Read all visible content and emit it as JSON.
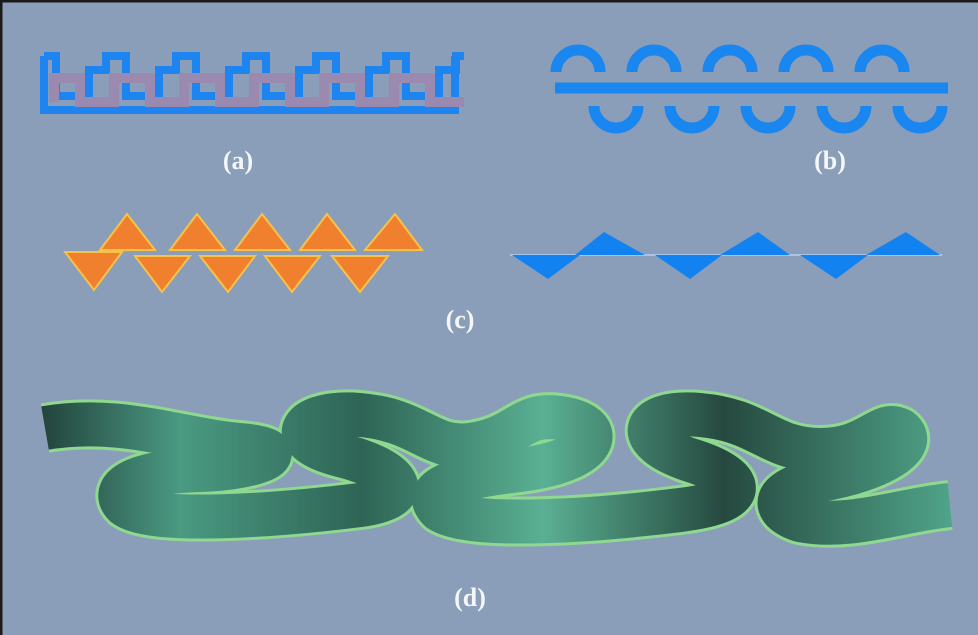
{
  "figure": {
    "labels": {
      "a": "(a)",
      "b": "(b)",
      "c": "(c)",
      "d": "(d)"
    }
  }
}
